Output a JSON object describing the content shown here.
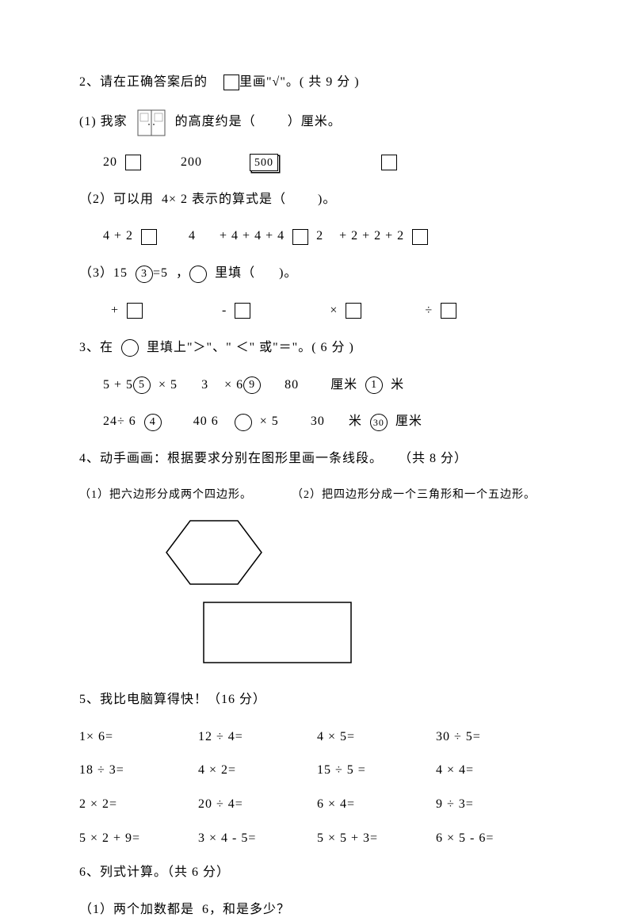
{
  "q2": {
    "title_a": "2、请在正确答案后的",
    "title_b": "里画\"√\"。( 共 9 分 )",
    "p1_a": "(1) 我家",
    "p1_b": "的高度约是（",
    "p1_c": "）厘米。",
    "p1_opt1": "20",
    "p1_opt2": "200",
    "p1_opt3": "500",
    "p2_a": "（2）可以用",
    "p2_b": "4× 2 表示的算式是（",
    "p2_c": ")。",
    "p2_opt1": "4 + 2",
    "p2_opt2": "4",
    "p2_opt3": "+ 4 + 4 + 4",
    "p2_opt4": "2",
    "p2_opt5": "+ 2 + 2 + 2",
    "p3_a": "（3）15",
    "p3_circ": "3",
    "p3_b": "=5",
    "p3_c": "，",
    "p3_d": "里填（",
    "p3_e": ")。",
    "p3_op1": "+",
    "p3_op2": "-",
    "p3_op3": "×",
    "p3_op4": "÷"
  },
  "q3": {
    "title": "3、在",
    "title_b": "里填上\"＞\"、\" ＜\" 或\"＝\"。( 6 分 )",
    "r1a": "5 + 5",
    "r1c1": "5",
    "r1b": "× 5",
    "r1c": "3",
    "r1d": "× 6",
    "r1c2": "9",
    "r1e": "80",
    "r1f": "厘米",
    "r1c3": "1",
    "r1g": "米",
    "r2a": "24÷ 6",
    "r2c1": "4",
    "r2b": "40  6",
    "r2c": "× 5",
    "r2d": "30",
    "r2e": "米",
    "r2c2": "30",
    "r2f": "厘米"
  },
  "q4": {
    "title": "4、动手画画：根据要求分别在图形里画一条线段。",
    "points": "（共 8 分）",
    "sub1": "（1）把六边形分成两个四边形。",
    "sub2": "（2）把四边形分成一个三角形和一个五边形。",
    "hex_stroke": "#000000",
    "rect_stroke": "#000000"
  },
  "q5": {
    "title": "5、我比电脑算得快！（16 分）",
    "rows": [
      [
        "1× 6=",
        "12",
        "÷ 4=",
        "4",
        "× 5=",
        "30",
        "÷ 5="
      ],
      [
        "18 ÷ 3=",
        "4",
        "× 2=",
        "15",
        "÷ 5 =",
        "4",
        "× 4="
      ],
      [
        "2 × 2=",
        "20",
        "÷ 4=",
        "6",
        "× 4=",
        "9",
        "÷ 3="
      ],
      [
        "5 × 2 + 9=",
        "3",
        "× 4 - 5=",
        "5",
        "× 5 + 3=",
        "6",
        "× 5 - 6="
      ]
    ]
  },
  "q6": {
    "title": "6、列式计算。（共 6 分）",
    "p1": "（1）两个加数都是",
    "p1b": "6，和是多少？"
  }
}
